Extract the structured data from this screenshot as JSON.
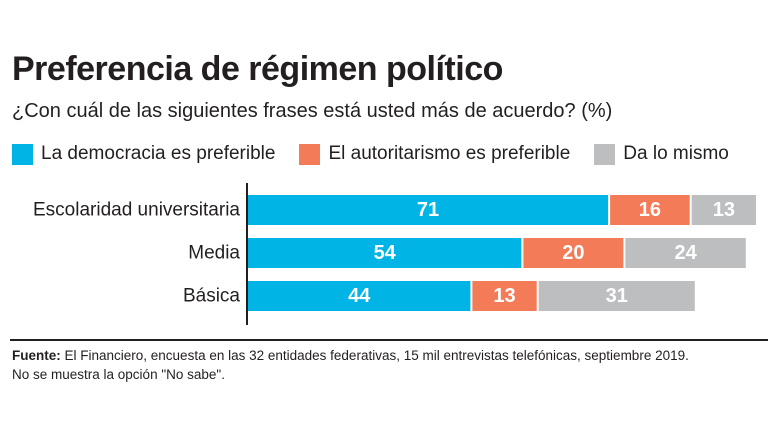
{
  "chart_data": {
    "type": "bar",
    "orientation": "horizontal",
    "stacked": true,
    "title": "Preferencia de régimen político",
    "subtitle": "¿Con cuál de las siguientes frases está usted más de acuerdo? (%)",
    "categories": [
      "Escolaridad universitaria",
      "Media",
      "Básica"
    ],
    "series": [
      {
        "name": "La democracia es preferible",
        "values": [
          71,
          54,
          44
        ],
        "color": "#00b4e6"
      },
      {
        "name": "El autoritarismo es preferible",
        "values": [
          16,
          20,
          13
        ],
        "color": "#f37b57"
      },
      {
        "name": "Da lo mismo",
        "values": [
          13,
          24,
          31
        ],
        "color": "#bcbec0"
      }
    ],
    "xlim": [
      0,
      100
    ],
    "legend_position": "top",
    "grid": false
  },
  "footer": {
    "source_label": "Fuente:",
    "source_text": " El Financiero, encuesta en las 32 entidades federativas, 15 mil entrevistas telefónicas, septiembre 2019.",
    "note": "No se muestra la opción \"No sabe\"."
  }
}
